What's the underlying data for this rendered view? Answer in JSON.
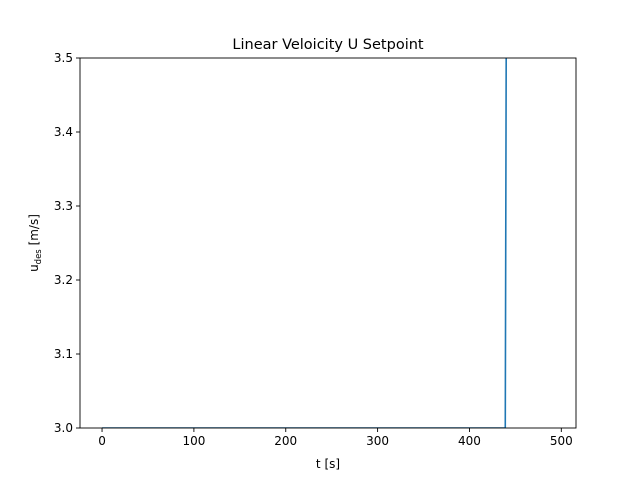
{
  "chart_data": {
    "type": "line",
    "title": "Linear Veloicity U Setpoint",
    "xlabel": "t [s]",
    "ylabel_main": "u",
    "ylabel_sub": "des",
    "ylabel_unit": " [m/s]",
    "xlim": [
      -24,
      516
    ],
    "ylim": [
      3.0,
      3.5
    ],
    "xticks": [
      0,
      100,
      200,
      300,
      400,
      500
    ],
    "yticks": [
      3.0,
      3.1,
      3.2,
      3.3,
      3.4,
      3.5
    ],
    "grid": false,
    "series": [
      {
        "color": "#1f77b4",
        "x": [
          0,
          439,
          440
        ],
        "y": [
          3.0,
          3.0,
          3.5
        ]
      }
    ]
  }
}
